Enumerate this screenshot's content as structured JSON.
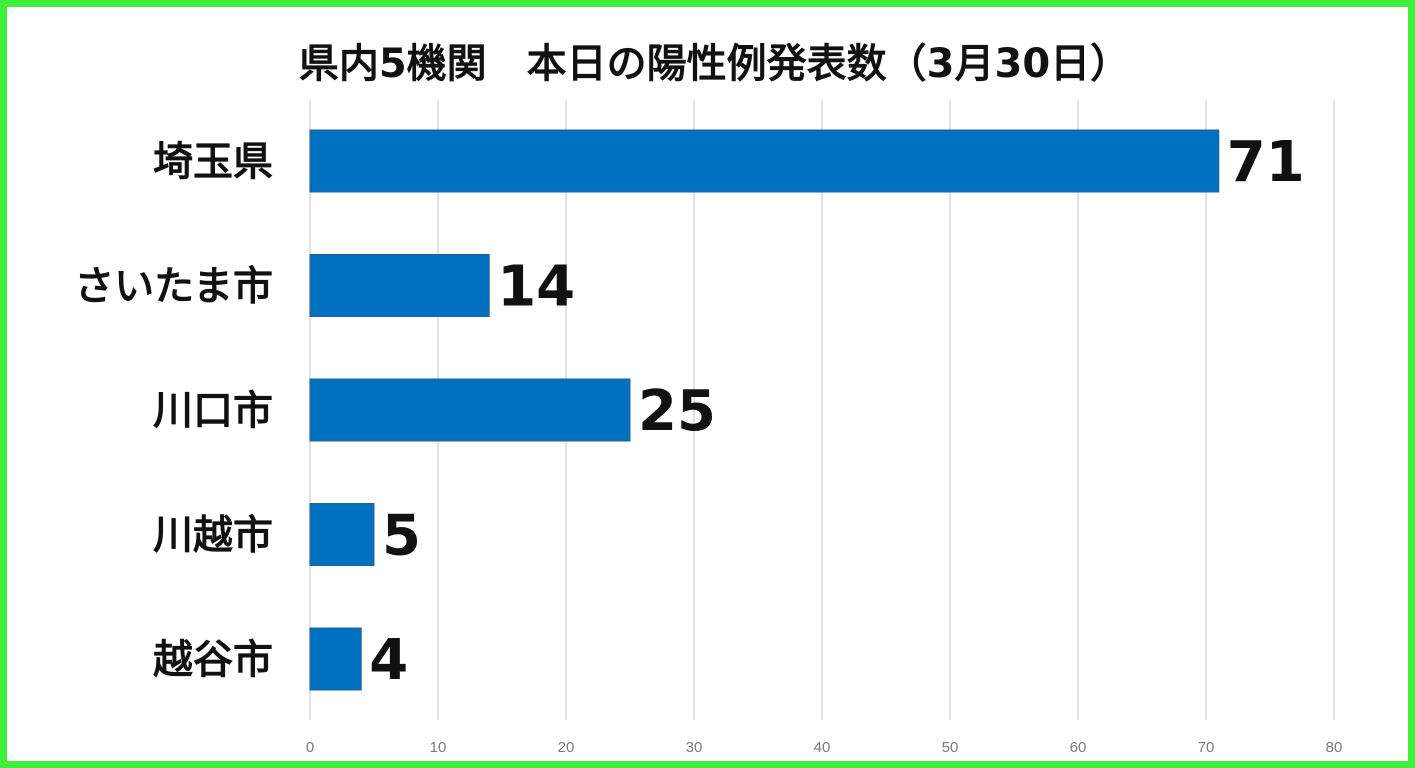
{
  "chart_data": {
    "type": "bar",
    "orientation": "horizontal",
    "title": "県内5機関　本日の陽性例発表数（3月30日）",
    "categories": [
      "埼玉県",
      "さいたま市",
      "川口市",
      "川越市",
      "越谷市"
    ],
    "values": [
      71,
      14,
      25,
      5,
      4
    ],
    "xlim": [
      0,
      80
    ],
    "xticks": [
      "0",
      "10",
      "20",
      "30",
      "40",
      "50",
      "60",
      "70",
      "80"
    ],
    "grid": true,
    "bar_color": "#0070c0",
    "frame_color": "#3cf03c"
  }
}
